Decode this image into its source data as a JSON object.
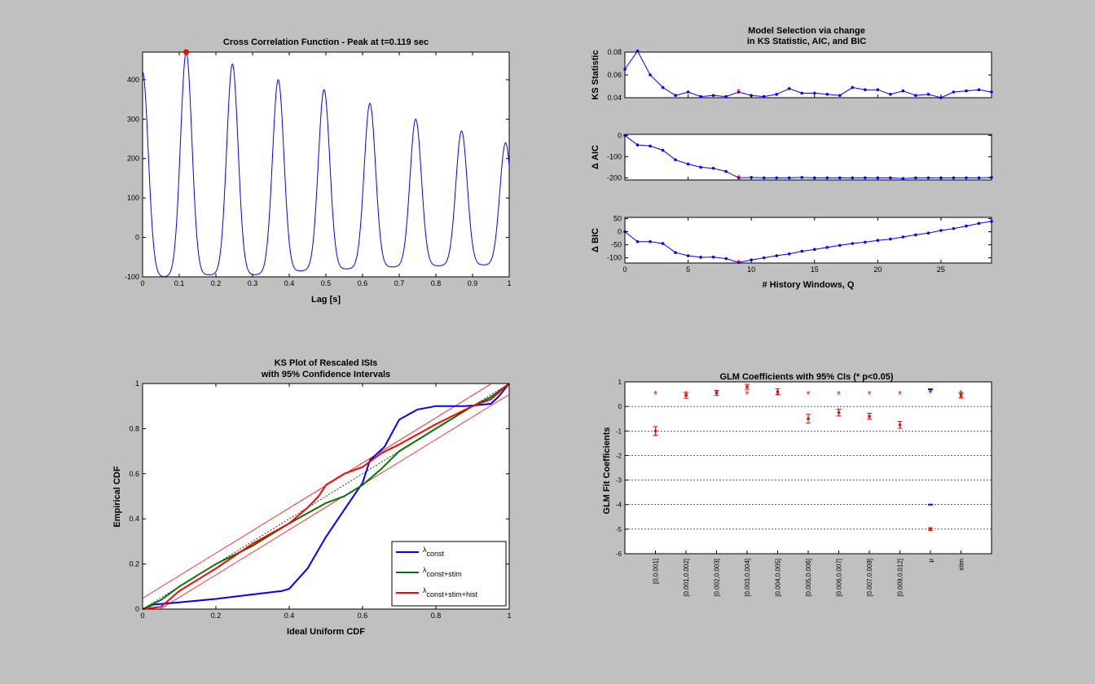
{
  "colors": {
    "figure_bg": "#c0c0c0",
    "blue": "#0000ff",
    "green": "#007700",
    "red": "#ff0000"
  },
  "charts": {
    "xcorr": {
      "type": "line",
      "title": "Cross Correlation Function - Peak at t=0.119 sec",
      "xlabel": "Lag [s]",
      "xlim": [
        0,
        1
      ],
      "ylim": [
        -100,
        470
      ],
      "xticks": [
        0,
        0.1,
        0.2,
        0.3,
        0.4,
        0.5,
        0.6,
        0.7,
        0.8,
        0.9,
        1
      ],
      "xticklabels": [
        "0",
        "0.1",
        "0.2",
        "0.3",
        "0.4",
        "0.5",
        "0.6",
        "0.7",
        "0.8",
        "0.9",
        "1"
      ],
      "yticks": [
        -100,
        0,
        100,
        200,
        300,
        400
      ],
      "yticklabels": [
        "-100",
        "0",
        "100",
        "200",
        "300",
        "400"
      ],
      "peak": {
        "x": 0.119,
        "y": 470
      },
      "peaks": [
        {
          "x": 0.0,
          "y": 420
        },
        {
          "x": 0.119,
          "y": 470
        },
        {
          "x": 0.245,
          "y": 440
        },
        {
          "x": 0.37,
          "y": 400
        },
        {
          "x": 0.495,
          "y": 375
        },
        {
          "x": 0.62,
          "y": 340
        },
        {
          "x": 0.745,
          "y": 300
        },
        {
          "x": 0.87,
          "y": 270
        },
        {
          "x": 0.99,
          "y": 240
        }
      ],
      "troughs": [
        {
          "x": 0.06,
          "y": -100
        },
        {
          "x": 0.18,
          "y": -95
        },
        {
          "x": 0.305,
          "y": -95
        },
        {
          "x": 0.43,
          "y": -85
        },
        {
          "x": 0.555,
          "y": -80
        },
        {
          "x": 0.68,
          "y": -75
        },
        {
          "x": 0.805,
          "y": -72
        },
        {
          "x": 0.93,
          "y": -70
        }
      ],
      "peak_width": 0.022
    },
    "ks_stat": {
      "type": "line",
      "title_lines": [
        "Model Selection via change",
        "in KS Statistic, AIC, and BIC"
      ],
      "ylabel": "KS Statistic",
      "xlim": [
        0,
        29
      ],
      "ylim": [
        0.04,
        0.08
      ],
      "yticks": [
        0.04,
        0.06,
        0.08
      ],
      "yticklabels": [
        "0.04",
        "0.06",
        "0.08"
      ],
      "x": [
        0,
        1,
        2,
        3,
        4,
        5,
        6,
        7,
        8,
        9,
        10,
        11,
        12,
        13,
        14,
        15,
        16,
        17,
        18,
        19,
        20,
        21,
        22,
        23,
        24,
        25,
        26,
        27,
        28,
        29
      ],
      "y": [
        0.065,
        0.081,
        0.06,
        0.049,
        0.042,
        0.045,
        0.041,
        0.042,
        0.041,
        0.045,
        0.042,
        0.041,
        0.043,
        0.048,
        0.044,
        0.044,
        0.043,
        0.042,
        0.049,
        0.047,
        0.047,
        0.043,
        0.046,
        0.042,
        0.043,
        0.04,
        0.045,
        0.046,
        0.047,
        0.045
      ],
      "selected": 9
    },
    "aic": {
      "type": "line",
      "ylabel": "Δ AIC",
      "xlim": [
        0,
        29
      ],
      "ylim": [
        -210,
        5
      ],
      "yticks": [
        -200,
        -100,
        0
      ],
      "yticklabels": [
        "-200",
        "-100",
        "0"
      ],
      "x": [
        0,
        1,
        2,
        3,
        4,
        5,
        6,
        7,
        8,
        9,
        10,
        11,
        12,
        13,
        14,
        15,
        16,
        17,
        18,
        19,
        20,
        21,
        22,
        23,
        24,
        25,
        26,
        27,
        28,
        29
      ],
      "y": [
        0,
        -45,
        -50,
        -70,
        -115,
        -135,
        -150,
        -155,
        -170,
        -200,
        -198,
        -200,
        -200,
        -200,
        -198,
        -200,
        -200,
        -200,
        -200,
        -200,
        -200,
        -200,
        -203,
        -200,
        -200,
        -200,
        -200,
        -200,
        -200,
        -198
      ],
      "selected": 9
    },
    "bic": {
      "type": "line",
      "ylabel": "Δ BIC",
      "xlabel": "# History Windows, Q",
      "xlim": [
        0,
        29
      ],
      "ylim": [
        -120,
        55
      ],
      "xticks": [
        0,
        5,
        10,
        15,
        20,
        25
      ],
      "xticklabels": [
        "0",
        "5",
        "10",
        "15",
        "20",
        "25"
      ],
      "yticks": [
        -100,
        -50,
        0,
        50
      ],
      "yticklabels": [
        "-100",
        "-50",
        "0",
        "50"
      ],
      "x": [
        0,
        1,
        2,
        3,
        4,
        5,
        6,
        7,
        8,
        9,
        10,
        11,
        12,
        13,
        14,
        15,
        16,
        17,
        18,
        19,
        20,
        21,
        22,
        23,
        24,
        25,
        26,
        27,
        28,
        29
      ],
      "y": [
        0,
        -38,
        -38,
        -45,
        -80,
        -92,
        -98,
        -97,
        -103,
        -118,
        -108,
        -100,
        -92,
        -85,
        -75,
        -68,
        -60,
        -52,
        -45,
        -40,
        -33,
        -28,
        -20,
        -12,
        -5,
        5,
        12,
        22,
        32,
        40
      ],
      "selected": 9
    },
    "ks_plot": {
      "type": "line",
      "title_lines": [
        "KS Plot of Rescaled ISIs",
        "with 95% Confidence Intervals"
      ],
      "xlabel": "Ideal Uniform CDF",
      "ylabel": "Empirical CDF",
      "xlim": [
        0,
        1
      ],
      "ylim": [
        0,
        1
      ],
      "xticks": [
        0,
        0.2,
        0.4,
        0.6,
        0.8,
        1
      ],
      "xticklabels": [
        "0",
        "0.2",
        "0.4",
        "0.6",
        "0.8",
        "1"
      ],
      "yticks": [
        0,
        0.2,
        0.4,
        0.6,
        0.8,
        1
      ],
      "yticklabels": [
        "0",
        "0.2",
        "0.4",
        "0.6",
        "0.8",
        "1"
      ],
      "ci_band": 0.048,
      "series": [
        {
          "name_main": "λ",
          "name_sub": "const",
          "color": "#0000ff",
          "x": [
            0,
            0.03,
            0.1,
            0.2,
            0.3,
            0.38,
            0.4,
            0.45,
            0.5,
            0.55,
            0.6,
            0.62,
            0.66,
            0.7,
            0.75,
            0.8,
            0.88,
            0.92,
            0.95,
            0.97,
            1
          ],
          "y": [
            0,
            0.02,
            0.03,
            0.045,
            0.065,
            0.08,
            0.09,
            0.18,
            0.32,
            0.44,
            0.56,
            0.66,
            0.72,
            0.84,
            0.885,
            0.9,
            0.9,
            0.905,
            0.91,
            0.94,
            1
          ]
        },
        {
          "name_main": "λ",
          "name_sub": "const+stim",
          "color": "#007700",
          "x": [
            0,
            0.05,
            0.1,
            0.2,
            0.3,
            0.4,
            0.5,
            0.55,
            0.6,
            0.65,
            0.7,
            0.8,
            0.9,
            0.95,
            1
          ],
          "y": [
            0,
            0.04,
            0.1,
            0.2,
            0.28,
            0.38,
            0.47,
            0.5,
            0.55,
            0.62,
            0.7,
            0.8,
            0.9,
            0.94,
            1
          ]
        },
        {
          "name_main": "λ",
          "name_sub": "const+stim+hist",
          "color": "#ff0000",
          "x": [
            0,
            0.05,
            0.1,
            0.2,
            0.3,
            0.4,
            0.45,
            0.48,
            0.5,
            0.55,
            0.6,
            0.65,
            0.7,
            0.8,
            0.9,
            0.95,
            1
          ],
          "y": [
            0,
            0.01,
            0.08,
            0.18,
            0.29,
            0.38,
            0.45,
            0.5,
            0.55,
            0.6,
            0.63,
            0.69,
            0.73,
            0.82,
            0.9,
            0.93,
            1
          ]
        }
      ]
    },
    "glm": {
      "type": "scatter",
      "title": "GLM Coefficients with 95% CIs (* p<0.05)",
      "ylabel": "GLM Fit Coefficients",
      "ylim": [
        -6,
        1
      ],
      "yticks": [
        -6,
        -5,
        -4,
        -3,
        -2,
        -1,
        0,
        1
      ],
      "yticklabels": [
        "-6",
        "-5",
        "-4",
        "-3",
        "-2",
        "-1",
        "0",
        "1"
      ],
      "categories": [
        "[0,0.001]",
        "[0.001,0.002]",
        "[0.002,0.003]",
        "[0.003,0.004]",
        "[0.004,0.005]",
        "[0.005,0.006]",
        "[0.006,0.007]",
        "[0.007,0.009]",
        "[0.009,0.012]",
        "μ",
        "stim"
      ],
      "values": [
        -1.0,
        0.45,
        0.55,
        0.8,
        0.6,
        -0.5,
        -0.25,
        -0.4,
        -0.75,
        -5.0,
        0.45
      ],
      "ci": [
        0.18,
        0.12,
        0.1,
        0.1,
        0.12,
        0.18,
        0.14,
        0.12,
        0.14,
        0.06,
        0.1
      ],
      "stars": [
        0.5,
        0.5,
        0.55,
        0.5,
        0.5,
        0.5,
        0.5,
        0.5,
        0.5,
        0.55,
        0.45
      ],
      "blue_points": [
        {
          "cat": 9,
          "y": -4.0
        },
        {
          "cat": 9,
          "y": 0.7
        }
      ],
      "green_points": [
        {
          "cat": 9,
          "y": 0.6
        },
        {
          "cat": 10,
          "y": 0.55
        }
      ]
    }
  }
}
